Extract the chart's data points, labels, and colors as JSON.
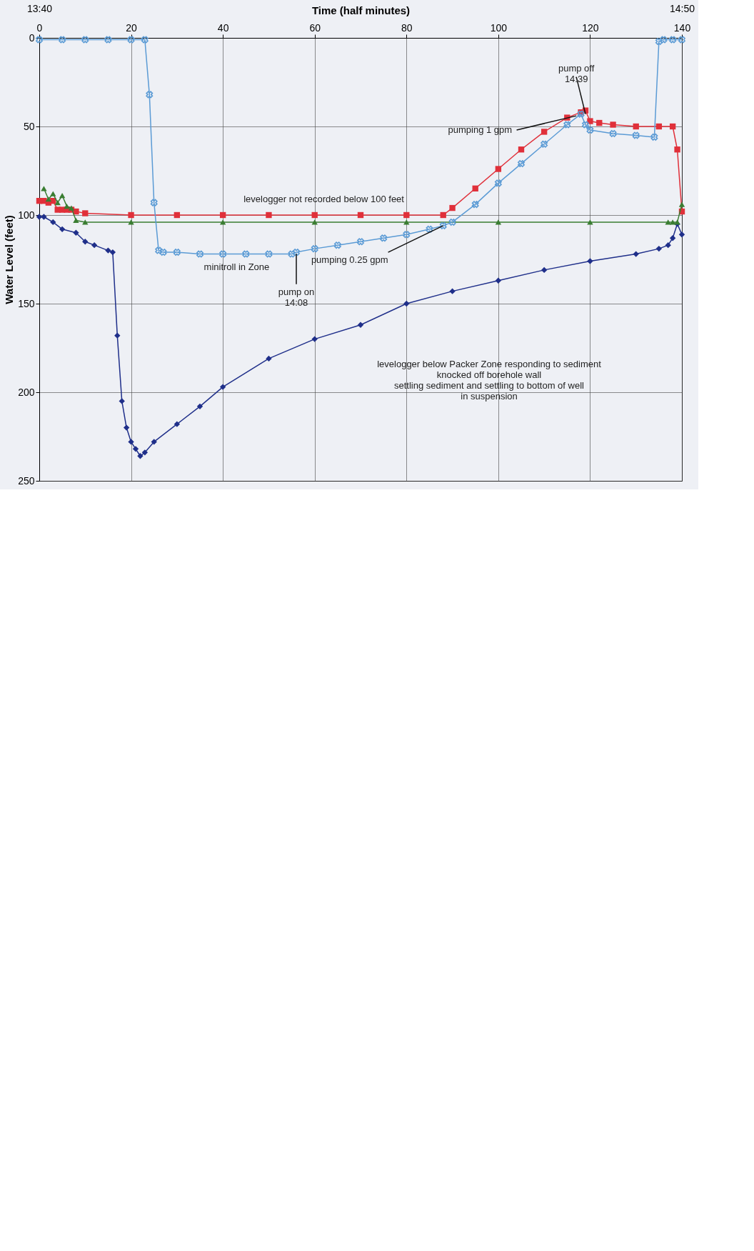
{
  "chart_data": {
    "type": "line",
    "xlabel": "Time (half minutes)",
    "ylabel": "Water Level (feet)",
    "xlim": [
      0,
      140
    ],
    "xticks": [
      0,
      20,
      40,
      60,
      80,
      100,
      120,
      140
    ],
    "x2lim": [
      13.6667,
      14.8333
    ],
    "x2ticks": [
      {
        "value": 13.6667,
        "label": "13:40"
      },
      {
        "value": 14.8333,
        "label": "14:50"
      }
    ],
    "ylim": [
      250,
      0
    ],
    "yticks": [
      0,
      50,
      100,
      150,
      200,
      250
    ],
    "grid": true,
    "line_style": "solid",
    "series": [
      {
        "color": "#1f2f8a",
        "marker": "diamond",
        "x": [
          0,
          1,
          3,
          5,
          8,
          10,
          12,
          15,
          16,
          17,
          18,
          19,
          20,
          21,
          22,
          23,
          25,
          30,
          35,
          40,
          50,
          60,
          70,
          80,
          90,
          100,
          110,
          120,
          130,
          135,
          137,
          138,
          139,
          140
        ],
        "values": [
          101,
          101,
          104,
          108,
          110,
          115,
          117,
          120,
          121,
          168,
          205,
          220,
          228,
          232,
          236,
          234,
          228,
          218,
          208,
          197,
          181,
          170,
          162,
          150,
          143,
          137,
          131,
          126,
          122,
          119,
          117,
          113,
          105,
          111
        ]
      },
      {
        "color": "#e0303a",
        "marker": "square",
        "x": [
          0,
          1,
          2,
          3,
          4,
          5,
          6,
          7,
          8,
          10,
          20,
          30,
          40,
          50,
          60,
          70,
          80,
          88,
          90,
          95,
          100,
          105,
          110,
          115,
          118,
          119,
          120,
          122,
          125,
          130,
          135,
          138,
          139,
          140
        ],
        "values": [
          92,
          92,
          93,
          92,
          97,
          97,
          97,
          97,
          98,
          99,
          100,
          100,
          100,
          100,
          100,
          100,
          100,
          100,
          96,
          85,
          74,
          63,
          53,
          45,
          42,
          41,
          47,
          48,
          49,
          50,
          50,
          50,
          63,
          98
        ]
      },
      {
        "color": "#3a7d32",
        "marker": "triangle",
        "x": [
          1,
          2,
          3,
          4,
          5,
          6,
          7,
          8,
          10,
          20,
          40,
          60,
          80,
          100,
          120,
          137,
          138,
          139,
          140
        ],
        "values": [
          85,
          91,
          88,
          93,
          89,
          95,
          96,
          103,
          104,
          104,
          104,
          104,
          104,
          104,
          104,
          104,
          104,
          104,
          94
        ]
      },
      {
        "color": "#5b9bd5",
        "marker": "cross",
        "x": [
          0,
          5,
          10,
          15,
          20,
          23,
          24,
          25,
          26,
          27,
          30,
          35,
          40,
          45,
          50,
          55,
          56,
          60,
          65,
          70,
          75,
          80,
          85,
          88,
          90,
          95,
          100,
          105,
          110,
          115,
          118,
          119,
          120,
          125,
          130,
          134,
          135,
          136,
          138,
          140
        ],
        "values": [
          1,
          1,
          1,
          1,
          1,
          1,
          32,
          93,
          120,
          121,
          121,
          122,
          122,
          122,
          122,
          122,
          121,
          119,
          117,
          115,
          113,
          111,
          108,
          106,
          104,
          94,
          82,
          71,
          60,
          49,
          43,
          49,
          52,
          54,
          55,
          56,
          2,
          1,
          1,
          1
        ]
      }
    ],
    "annotations": [
      "levelogger not recorded below 100 feet",
      "minitroll in Zone",
      {
        "text": "pump on\n14:08",
        "x": 56,
        "y": 122
      },
      {
        "text": "pumping 0.25 gpm",
        "x": 88,
        "y": 106
      },
      {
        "text": "pumping 1 gpm",
        "x": 117,
        "y": 44
      },
      {
        "text": "pump off\n14:39",
        "x": 119,
        "y": 43
      },
      "levelogger below Packer Zone responding to sediment\nknocked off borehole wall\nsettling sediment and settling to bottom of well\nin suspension"
    ]
  }
}
